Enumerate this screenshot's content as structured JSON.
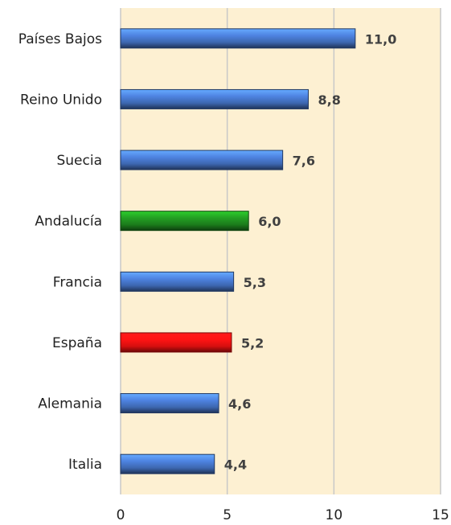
{
  "chart_data": {
    "type": "hbar",
    "categories": [
      "Países Bajos",
      "Reino Unido",
      "Suecia",
      "Andalucía",
      "Francia",
      "España",
      "Alemania",
      "Italia"
    ],
    "values": [
      11.0,
      8.8,
      7.6,
      6.0,
      5.3,
      5.2,
      4.6,
      4.4
    ],
    "value_labels": [
      "11,0",
      "8,8",
      "7,6",
      "6,0",
      "5,3",
      "5,2",
      "4,6",
      "4,4"
    ],
    "colors": [
      "#4472c4",
      "#4472c4",
      "#4472c4",
      "#1e8a1e",
      "#4472c4",
      "#ee1111",
      "#4472c4",
      "#4472c4"
    ],
    "xlim": [
      0,
      15
    ],
    "xticks": [
      0,
      5,
      10,
      15
    ],
    "grid": true
  }
}
